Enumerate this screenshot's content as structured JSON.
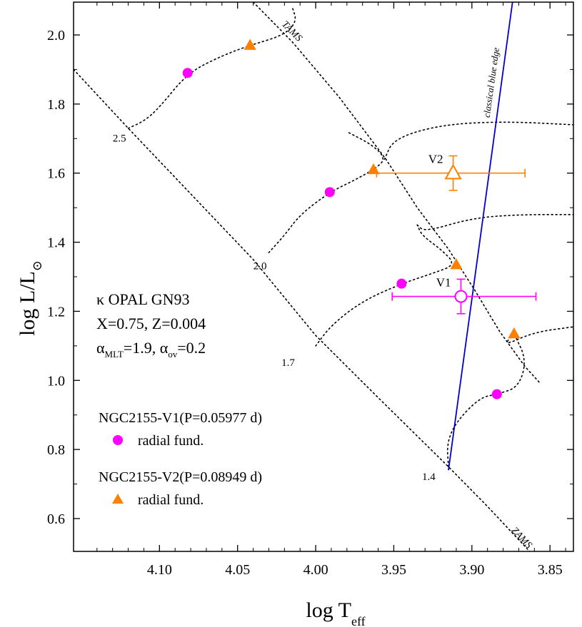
{
  "chart_data": {
    "type": "scatter",
    "title": "",
    "xlabel_main": "log T",
    "xlabel_sub": "eff",
    "ylabel_main": "log L/L",
    "ylabel_sub": "⊙",
    "xlim": [
      4.155,
      3.835
    ],
    "ylim": [
      0.505,
      2.095
    ],
    "x_reversed": true,
    "x_ticks": [
      4.1,
      4.05,
      4.0,
      3.95,
      3.9,
      3.85
    ],
    "x_tick_labels": [
      "4.10",
      "4.05",
      "4.00",
      "3.95",
      "3.90",
      "3.85"
    ],
    "y_ticks": [
      0.6,
      0.8,
      1.0,
      1.2,
      1.4,
      1.6,
      1.8,
      2.0
    ],
    "y_tick_labels": [
      "0.6",
      "0.8",
      "1.0",
      "1.2",
      "1.4",
      "1.6",
      "1.8",
      "2.0"
    ],
    "grid": false,
    "model_box": {
      "line1": "κ OPAL GN93",
      "line2": "X=0.75, Z=0.004",
      "alpha": "α",
      "mlt_sub": "MLT",
      "mlt_val": "=1.9, ",
      "ov_sub": "ov",
      "ov_val": "=0.2"
    },
    "legend": {
      "placement": "bottom-left",
      "entries": [
        {
          "title": "NGC2155-V1(P=0.05977 d)",
          "label": "radial fund.",
          "marker": "circle",
          "color": "#ff00ff"
        },
        {
          "title": "NGC2155-V2(P=0.08949 d)",
          "label": "radial fund.",
          "marker": "triangle",
          "color": "#ff8000"
        }
      ]
    },
    "colors": {
      "v1": "#ff00ff",
      "v2": "#ff8000",
      "blue_edge": "#0000cc",
      "tracks": "#000000"
    },
    "series": [
      {
        "name": "NGC2155-V1(P=0.05977 d)",
        "marker": "circle",
        "color": "#ff00ff",
        "points": [
          {
            "x": 4.082,
            "y": 1.89
          },
          {
            "x": 3.991,
            "y": 1.545
          },
          {
            "x": 3.945,
            "y": 1.28
          },
          {
            "x": 3.884,
            "y": 0.96
          }
        ]
      },
      {
        "name": "NGC2155-V2(P=0.08949 d)",
        "marker": "triangle",
        "color": "#ff8000",
        "points": [
          {
            "x": 4.042,
            "y": 1.97
          },
          {
            "x": 3.963,
            "y": 1.61
          },
          {
            "x": 3.91,
            "y": 1.335
          },
          {
            "x": 3.873,
            "y": 1.135
          }
        ]
      }
    ],
    "stars": [
      {
        "label": "V1",
        "x": 3.907,
        "y": 1.243,
        "x_err": [
          3.951,
          3.859
        ],
        "y_err": [
          1.193,
          1.293
        ],
        "marker": "circle-open",
        "color": "#ff00ff"
      },
      {
        "label": "V2",
        "x": 3.912,
        "y": 1.6,
        "x_err": [
          3.961,
          3.866
        ],
        "y_err": [
          1.55,
          1.65
        ],
        "marker": "triangle-open",
        "color": "#ff8000"
      }
    ],
    "zams": {
      "label": "ZAMS",
      "points": [
        {
          "x": 4.155,
          "y": 1.9
        },
        {
          "x": 4.12,
          "y": 1.73
        },
        {
          "x": 4.08,
          "y": 1.54
        },
        {
          "x": 4.04,
          "y": 1.35
        },
        {
          "x": 4.02,
          "y": 1.24
        },
        {
          "x": 4.0,
          "y": 1.13
        },
        {
          "x": 3.96,
          "y": 0.95
        },
        {
          "x": 3.915,
          "y": 0.75
        },
        {
          "x": 3.89,
          "y": 0.635
        },
        {
          "x": 3.862,
          "y": 0.5
        }
      ]
    },
    "tams": {
      "label": "TAMS",
      "points": [
        {
          "x": 4.04,
          "y": 2.095
        },
        {
          "x": 4.015,
          "y": 1.98
        },
        {
          "x": 3.985,
          "y": 1.82
        },
        {
          "x": 3.955,
          "y": 1.64
        },
        {
          "x": 3.935,
          "y": 1.5
        },
        {
          "x": 3.915,
          "y": 1.38
        },
        {
          "x": 3.898,
          "y": 1.26
        },
        {
          "x": 3.882,
          "y": 1.14
        },
        {
          "x": 3.866,
          "y": 1.04
        },
        {
          "x": 3.856,
          "y": 0.99
        }
      ]
    },
    "tracks": [
      {
        "mass_label": "2.5",
        "label_x": 4.12,
        "label_y": 1.7,
        "points": [
          {
            "x": 4.12,
            "y": 1.73
          },
          {
            "x": 4.11,
            "y": 1.75
          },
          {
            "x": 4.1,
            "y": 1.79
          },
          {
            "x": 4.082,
            "y": 1.89
          },
          {
            "x": 4.06,
            "y": 1.94
          },
          {
            "x": 4.042,
            "y": 1.97
          },
          {
            "x": 4.02,
            "y": 2.0
          },
          {
            "x": 4.012,
            "y": 2.04
          },
          {
            "x": 4.015,
            "y": 2.08
          }
        ]
      },
      {
        "mass_label": "2.0",
        "label_x": 4.03,
        "label_y": 1.33,
        "points": [
          {
            "x": 4.03,
            "y": 1.37
          },
          {
            "x": 4.02,
            "y": 1.42
          },
          {
            "x": 4.01,
            "y": 1.48
          },
          {
            "x": 3.991,
            "y": 1.545
          },
          {
            "x": 3.975,
            "y": 1.58
          },
          {
            "x": 3.963,
            "y": 1.61
          },
          {
            "x": 3.955,
            "y": 1.64
          },
          {
            "x": 3.963,
            "y": 1.68
          },
          {
            "x": 3.98,
            "y": 1.72
          }
        ]
      },
      {
        "mass_label": "1.7",
        "label_x": 4.012,
        "label_y": 1.05,
        "points": [
          {
            "x": 4.0,
            "y": 1.1
          },
          {
            "x": 3.99,
            "y": 1.16
          },
          {
            "x": 3.97,
            "y": 1.23
          },
          {
            "x": 3.945,
            "y": 1.28
          },
          {
            "x": 3.925,
            "y": 1.31
          },
          {
            "x": 3.91,
            "y": 1.335
          },
          {
            "x": 3.92,
            "y": 1.38
          },
          {
            "x": 3.932,
            "y": 1.42
          },
          {
            "x": 3.935,
            "y": 1.45
          }
        ]
      },
      {
        "mass_label": "1.4",
        "label_x": 3.922,
        "label_y": 0.72,
        "points": [
          {
            "x": 3.915,
            "y": 0.75
          },
          {
            "x": 3.916,
            "y": 0.82
          },
          {
            "x": 3.91,
            "y": 0.88
          },
          {
            "x": 3.895,
            "y": 0.95
          },
          {
            "x": 3.884,
            "y": 0.96
          },
          {
            "x": 3.87,
            "y": 0.98
          },
          {
            "x": 3.865,
            "y": 1.06
          },
          {
            "x": 3.873,
            "y": 1.135
          }
        ]
      }
    ],
    "post_ms_loops": [
      [
        {
          "x": 3.956,
          "y": 1.64
        },
        {
          "x": 3.95,
          "y": 1.7
        },
        {
          "x": 3.92,
          "y": 1.74
        },
        {
          "x": 3.88,
          "y": 1.75
        },
        {
          "x": 3.835,
          "y": 1.74
        }
      ],
      [
        {
          "x": 3.935,
          "y": 1.45
        },
        {
          "x": 3.93,
          "y": 1.43
        },
        {
          "x": 3.9,
          "y": 1.47
        },
        {
          "x": 3.87,
          "y": 1.48
        },
        {
          "x": 3.835,
          "y": 1.48
        }
      ],
      [
        {
          "x": 3.873,
          "y": 1.135
        },
        {
          "x": 3.88,
          "y": 1.1
        },
        {
          "x": 3.86,
          "y": 1.14
        },
        {
          "x": 3.835,
          "y": 1.155
        }
      ]
    ],
    "blue_edge": {
      "label": "classical blue edge",
      "points": [
        {
          "x": 3.915,
          "y": 0.74
        },
        {
          "x": 3.874,
          "y": 2.095
        }
      ]
    }
  }
}
